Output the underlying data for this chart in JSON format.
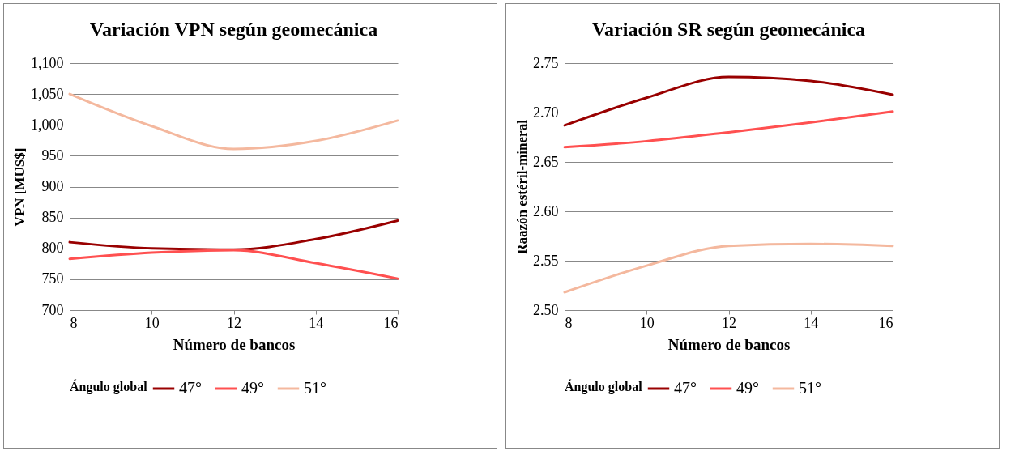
{
  "chart_data": [
    {
      "type": "line",
      "title": "Variación VPN según geomecánica",
      "xlabel": "Número de bancos",
      "ylabel": "VPN [MUS$]",
      "legend_title": "Ángulo global",
      "x": [
        8,
        10,
        12,
        14,
        16
      ],
      "series": [
        {
          "name": "47°",
          "color": "#990000",
          "values": [
            810,
            800,
            798,
            815,
            845
          ]
        },
        {
          "name": "49°",
          "color": "#ff5050",
          "values": [
            783,
            793,
            797,
            776,
            751
          ]
        },
        {
          "name": "51°",
          "color": "#f4b89e",
          "values": [
            1050,
            998,
            961,
            974,
            1007
          ]
        }
      ],
      "xlim": [
        8,
        16
      ],
      "xticks": [
        8,
        10,
        12,
        14,
        16
      ],
      "ylim": [
        700,
        1100
      ],
      "yticks": [
        700,
        750,
        800,
        850,
        900,
        950,
        {
          "value": 1000,
          "label": "1,000"
        },
        {
          "value": 1050,
          "label": "1,050"
        },
        {
          "value": 1100,
          "label": "1,100"
        }
      ],
      "grid": "y",
      "legend": "bottom"
    },
    {
      "type": "line",
      "title": "Variación SR según geomecánica",
      "xlabel": "Número de bancos",
      "ylabel": "Raazón estéril-mineral",
      "legend_title": "Ángulo global",
      "x": [
        8,
        10,
        12,
        14,
        16
      ],
      "series": [
        {
          "name": "47°",
          "color": "#990000",
          "values": [
            2.687,
            2.715,
            2.736,
            2.732,
            2.718
          ]
        },
        {
          "name": "49°",
          "color": "#ff5050",
          "values": [
            2.665,
            2.671,
            2.68,
            2.69,
            2.701
          ]
        },
        {
          "name": "51°",
          "color": "#f4b89e",
          "values": [
            2.518,
            2.545,
            2.565,
            2.567,
            2.565
          ]
        }
      ],
      "xlim": [
        8,
        16
      ],
      "xticks": [
        8,
        10,
        12,
        14,
        16
      ],
      "ylim": [
        2.5,
        2.75
      ],
      "yticks": [
        {
          "value": 2.5,
          "label": "2.50"
        },
        {
          "value": 2.55,
          "label": "2.55"
        },
        {
          "value": 2.6,
          "label": "2.60"
        },
        {
          "value": 2.65,
          "label": "2.65"
        },
        {
          "value": 2.7,
          "label": "2.70"
        },
        {
          "value": 2.75,
          "label": "2.75"
        }
      ],
      "grid": "y",
      "legend": "bottom"
    }
  ]
}
